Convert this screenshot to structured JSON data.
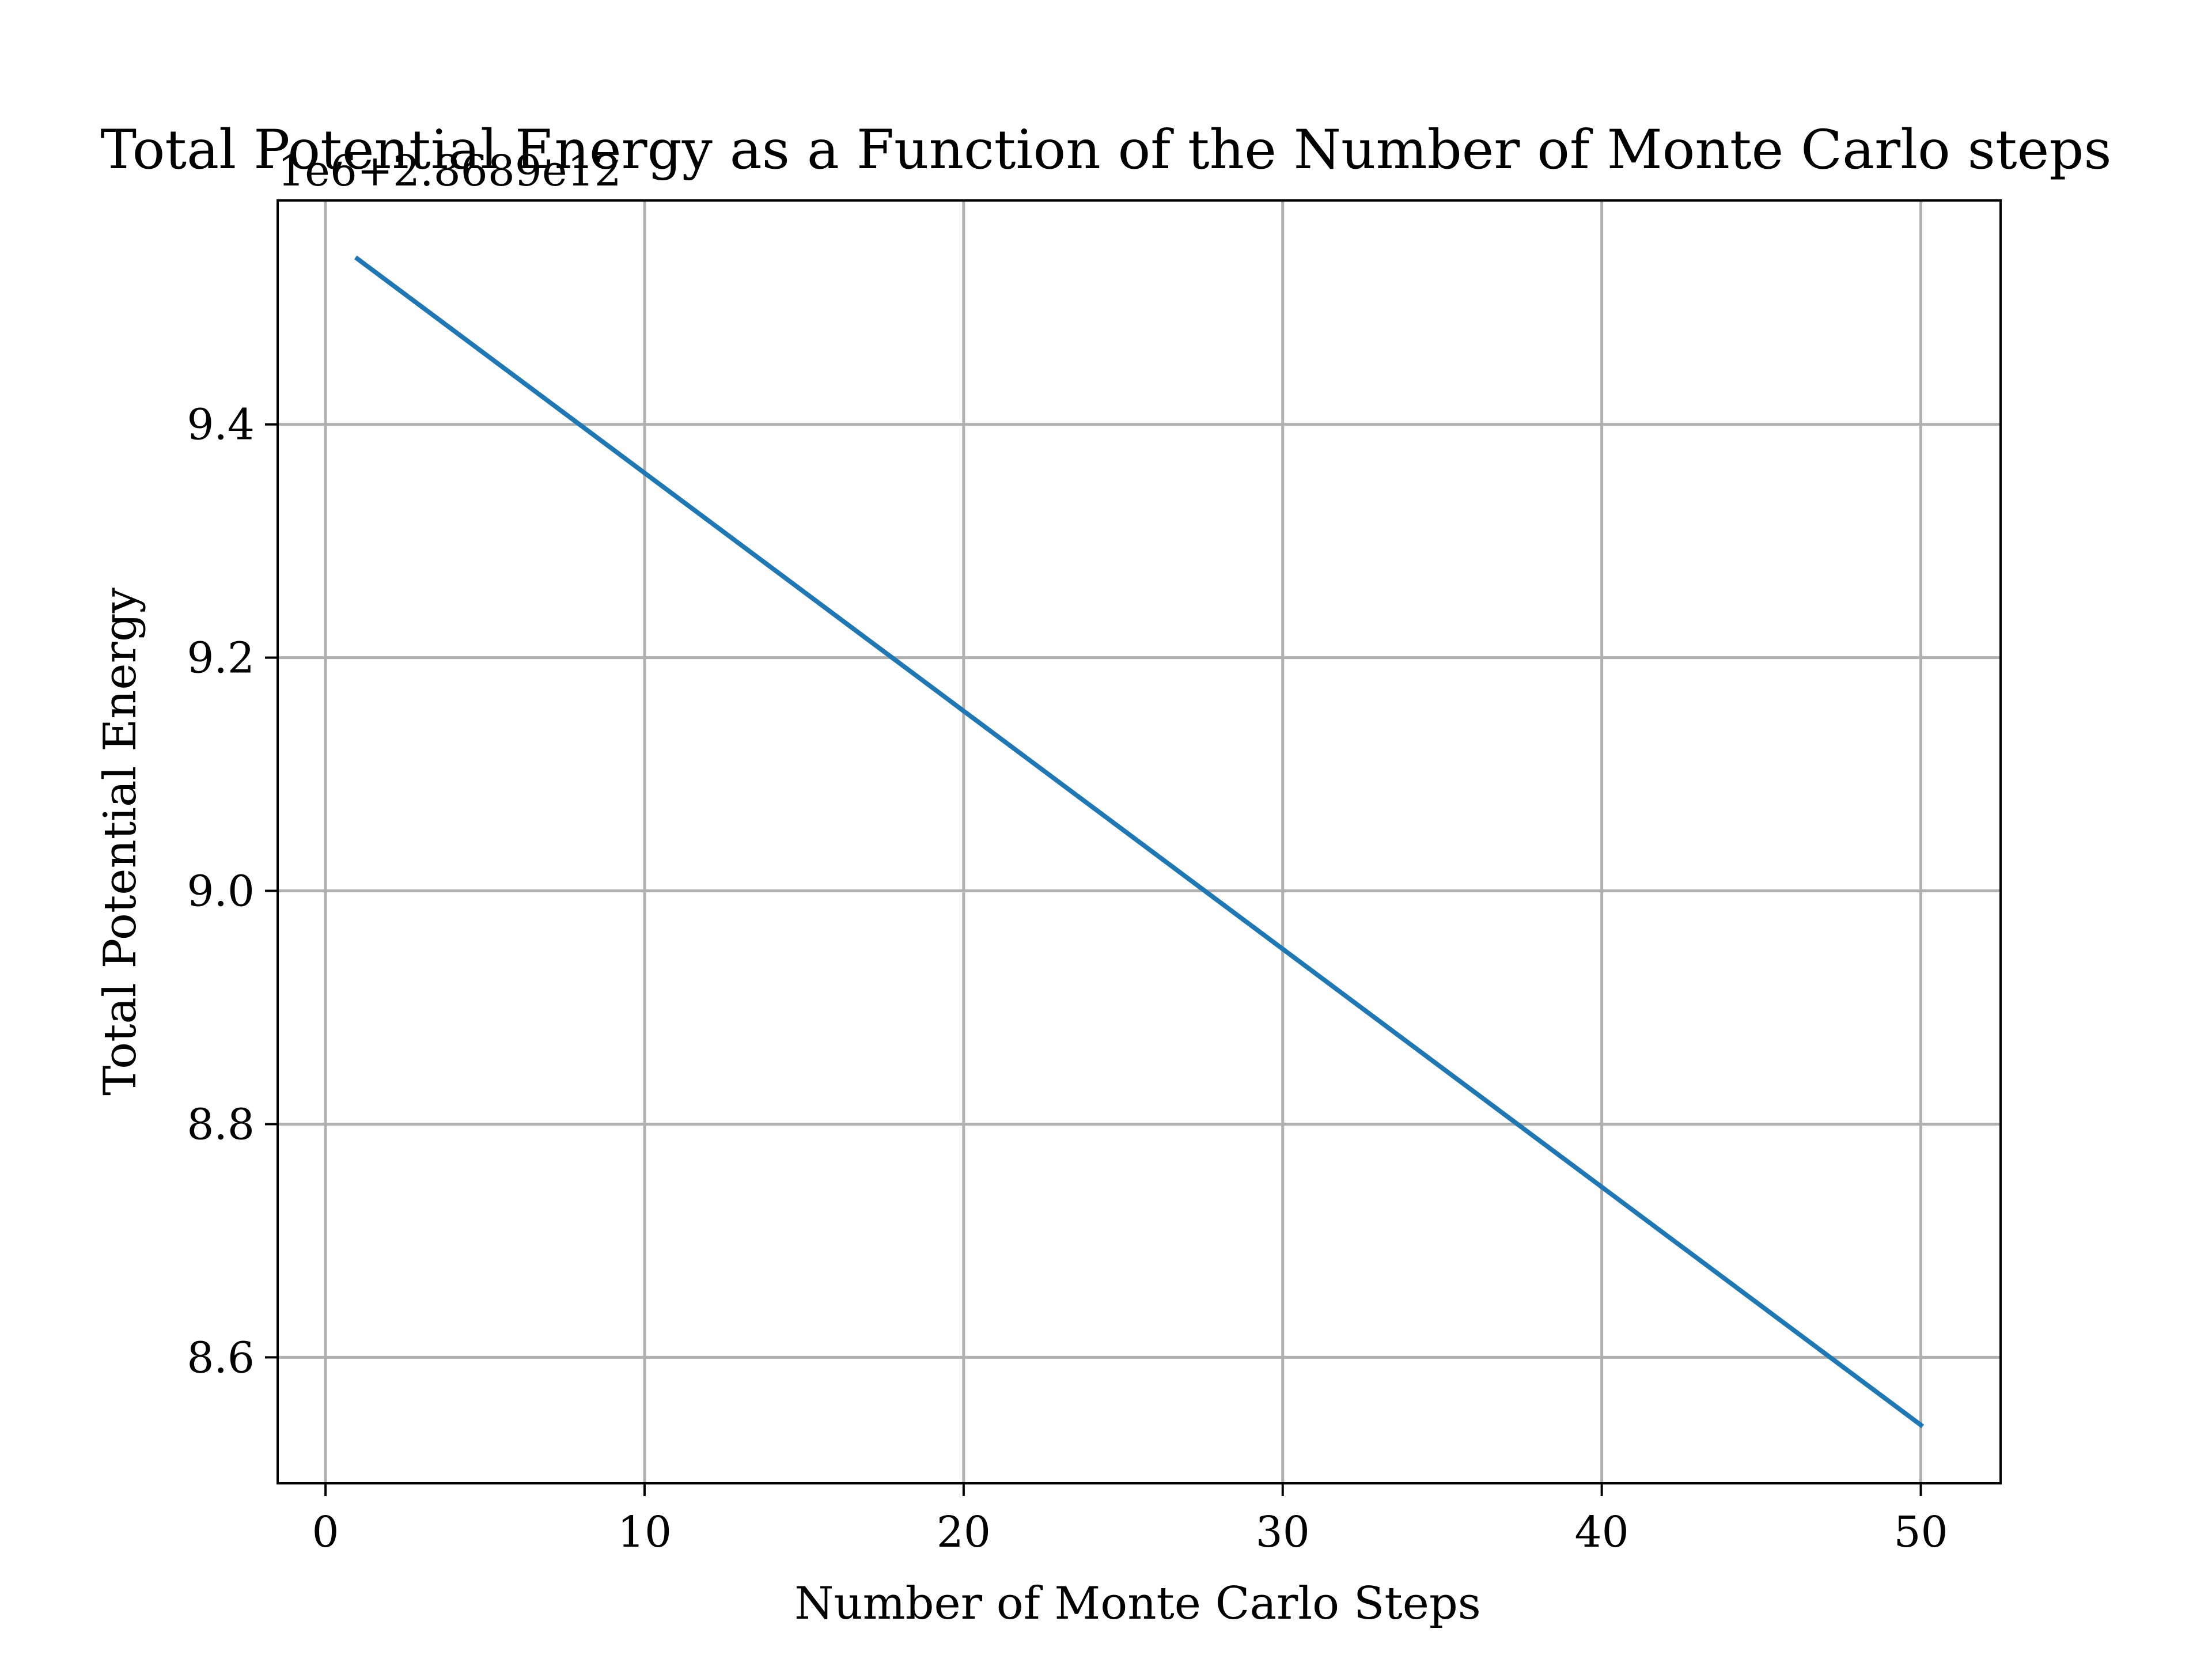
{
  "chart_data": {
    "type": "line",
    "title": "Total Potential Energy as a Function of the Number of Monte Carlo steps",
    "xlabel": "Number of Monte Carlo Steps",
    "ylabel": "Total Potential Energy",
    "y_offset_label": "1e6+2.8689e12",
    "xlim": [
      -1.5,
      52.5
    ],
    "ylim": [
      8.492,
      9.592
    ],
    "x_ticks": [
      0,
      10,
      20,
      30,
      40,
      50
    ],
    "y_ticks": [
      8.6,
      8.8,
      9.0,
      9.2,
      9.4
    ],
    "x_tick_labels": [
      "0",
      "10",
      "20",
      "30",
      "40",
      "50"
    ],
    "y_tick_labels": [
      "8.6",
      "8.8",
      "9.0",
      "9.2",
      "9.4"
    ],
    "grid": true,
    "series": [
      {
        "color": "#1f77b4",
        "x": [
          1,
          50
        ],
        "y": [
          9.542,
          8.542
        ]
      }
    ]
  }
}
